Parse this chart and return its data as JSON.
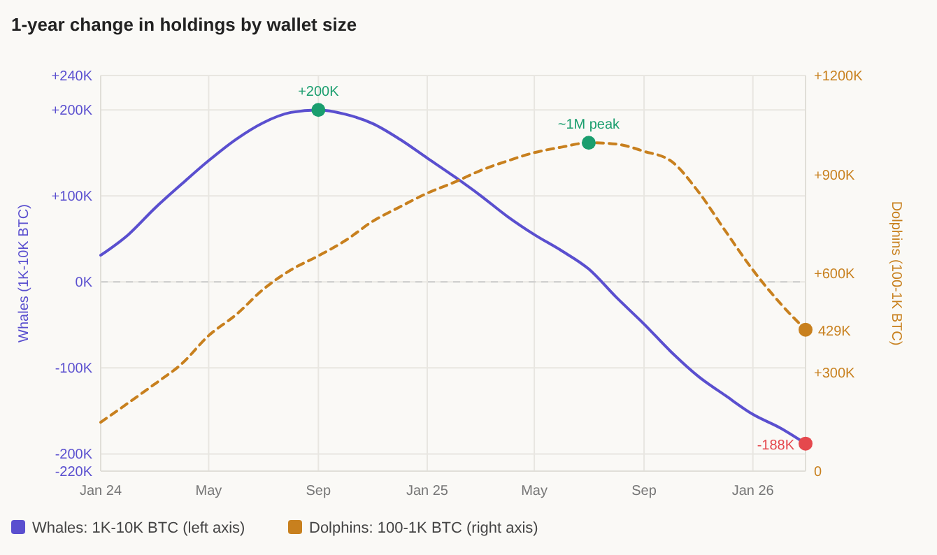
{
  "chart_data": {
    "type": "line",
    "title": "1-year change in holdings by wallet size",
    "xlim": [
      "2024-01-01",
      "2026-03-01"
    ],
    "xticks": [
      {
        "value": "2024-01-01",
        "label": "Jan 24"
      },
      {
        "value": "2024-05-01",
        "label": "May"
      },
      {
        "value": "2024-09-01",
        "label": "Sep"
      },
      {
        "value": "2025-01-01",
        "label": "Jan 25"
      },
      {
        "value": "2025-05-01",
        "label": "May"
      },
      {
        "value": "2025-09-01",
        "label": "Sep"
      },
      {
        "value": "2026-01-01",
        "label": "Jan 26"
      }
    ],
    "ylim": [
      -220000,
      240000
    ],
    "yticks": [
      {
        "value": 240000,
        "label": "+240K"
      },
      {
        "value": 200000,
        "label": "+200K"
      },
      {
        "value": 100000,
        "label": "+100K"
      },
      {
        "value": 0,
        "label": "0K"
      },
      {
        "value": -100000,
        "label": "-100K"
      },
      {
        "value": -200000,
        "label": "-200K"
      },
      {
        "value": -220000,
        "label": "-220K"
      }
    ],
    "y2lim": [
      0,
      1200000
    ],
    "y2ticks": [
      {
        "value": 0,
        "label": "0"
      },
      {
        "value": 300000,
        "label": "+300K"
      },
      {
        "value": 600000,
        "label": "+600K"
      },
      {
        "value": 900000,
        "label": "+900K"
      },
      {
        "value": 1200000,
        "label": "+1200K"
      }
    ],
    "ylabel": "Whales (1K-10K BTC)",
    "y2label": "Dolphins (100-1K BTC)",
    "grid": true,
    "legend": "bottom",
    "ref_lines": [
      {
        "axis": "y",
        "value": 0,
        "color": "#cccccc",
        "line_style": "dashed"
      }
    ],
    "x": [
      "2024-01-01",
      "2024-02-01",
      "2024-03-01",
      "2024-04-01",
      "2024-05-01",
      "2024-06-01",
      "2024-07-01",
      "2024-08-01",
      "2024-09-01",
      "2024-10-01",
      "2024-11-01",
      "2024-12-01",
      "2025-01-01",
      "2025-02-01",
      "2025-03-01",
      "2025-04-01",
      "2025-05-01",
      "2025-06-01",
      "2025-07-01",
      "2025-08-01",
      "2025-09-01",
      "2025-10-01",
      "2025-11-01",
      "2025-12-01",
      "2026-01-01",
      "2026-02-01",
      "2026-03-01"
    ],
    "series": [
      {
        "name": "Whales: 1K-10K BTC (left axis)",
        "color": "#5a4fcf",
        "line_style": "solid",
        "values": [
          31000,
          55000,
          85000,
          114000,
          141000,
          166000,
          185000,
          197000,
          200000,
          195000,
          184000,
          166000,
          144000,
          122000,
          101000,
          76000,
          55000,
          36000,
          15000,
          -18000,
          -49000,
          -81000,
          -110000,
          -132000,
          -154000,
          -170000,
          -188000
        ]
      },
      {
        "name": "Dolphins: 100-1K BTC (right axis)",
        "color": "#c8801e",
        "line_style": "dashed",
        "axis": "y2",
        "values": [
          148000,
          207000,
          263000,
          326000,
          411000,
          475000,
          551000,
          610000,
          653000,
          699000,
          758000,
          801000,
          843000,
          877000,
          911000,
          941000,
          966000,
          983000,
          996000,
          992000,
          970000,
          941000,
          847000,
          729000,
          610000,
          508000,
          429000
        ]
      },
      {
        "type": "scatter",
        "color": "#1a9e6e",
        "x": [
          "2024-09-01"
        ],
        "values": [
          200000
        ],
        "value_labels": [
          "+200K"
        ]
      },
      {
        "type": "scatter",
        "color": "#1a9e6e",
        "axis": "y2",
        "x": [
          "2025-07-01"
        ],
        "values": [
          996000
        ],
        "value_labels": [
          "~1M peak"
        ]
      },
      {
        "type": "scatter",
        "color": "#e5484d",
        "x": [
          "2026-03-01"
        ],
        "values": [
          -188000
        ],
        "value_labels": [
          "-188K"
        ]
      },
      {
        "type": "scatter",
        "color": "#c8801e",
        "axis": "y2",
        "x": [
          "2026-03-01"
        ],
        "values": [
          429000
        ],
        "value_labels": [
          "429K"
        ]
      }
    ]
  }
}
